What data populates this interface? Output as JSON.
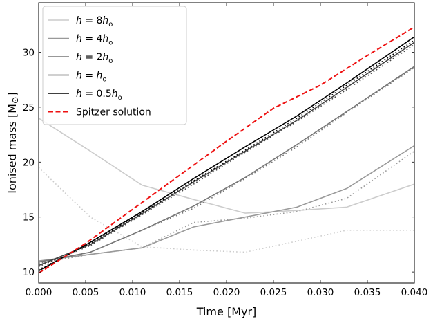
{
  "chart_data": {
    "type": "line",
    "title": "",
    "xlabel": "Time [Myr]",
    "ylabel": "Ionised mass [M⊙]",
    "xlim": [
      0.0,
      0.04
    ],
    "ylim": [
      9.0,
      34.5
    ],
    "xticks": [
      0.0,
      0.005,
      0.01,
      0.015,
      0.02,
      0.025,
      0.03,
      0.035,
      0.04
    ],
    "xtick_labels": [
      "0.000",
      "0.005",
      "0.010",
      "0.015",
      "0.020",
      "0.025",
      "0.030",
      "0.035",
      "0.040"
    ],
    "yticks": [
      10,
      15,
      20,
      25,
      30
    ],
    "ytick_labels": [
      "10",
      "15",
      "20",
      "25",
      "30"
    ],
    "grid": false,
    "legend_position": "top-left",
    "series": [
      {
        "name": "h = 8hₒ",
        "legend": {
          "var": "h",
          "eq": " = 8",
          "h": "h",
          "sub": "o"
        },
        "color": "#cccccc",
        "style": "solid",
        "x": [
          0.0,
          0.0055,
          0.011,
          0.0165,
          0.022,
          0.0275,
          0.0328,
          0.04
        ],
        "y": [
          24.0,
          21.0,
          17.9,
          16.6,
          15.35,
          15.6,
          15.9,
          18.0
        ]
      },
      {
        "name": "",
        "color": "#cccccc",
        "style": "dotted",
        "x": [
          0.0,
          0.0055,
          0.011,
          0.0165,
          0.022,
          0.0275,
          0.0328,
          0.04
        ],
        "y": [
          19.5,
          15.0,
          12.3,
          12.0,
          11.8,
          12.8,
          13.8,
          13.8
        ]
      },
      {
        "name": "h = 4hₒ",
        "legend": {
          "var": "h",
          "eq": " = 4",
          "h": "h",
          "sub": "o"
        },
        "color": "#999999",
        "style": "solid",
        "x": [
          0.0,
          0.0055,
          0.011,
          0.0165,
          0.022,
          0.0275,
          0.0328,
          0.04
        ],
        "y": [
          11.0,
          11.6,
          12.2,
          14.1,
          15.0,
          15.9,
          17.6,
          21.5
        ]
      },
      {
        "name": "",
        "color": "#999999",
        "style": "dotted",
        "x": [
          0.0,
          0.0055,
          0.011,
          0.0165,
          0.022,
          0.0275,
          0.0328,
          0.04
        ],
        "y": [
          10.8,
          11.6,
          12.2,
          14.5,
          14.9,
          15.5,
          16.7,
          21.0
        ]
      },
      {
        "name": "h = 2hₒ",
        "legend": {
          "var": "h",
          "eq": " = 2",
          "h": "h",
          "sub": "o"
        },
        "color": "#777777",
        "style": "solid",
        "x": [
          0.0,
          0.0055,
          0.011,
          0.0165,
          0.022,
          0.0275,
          0.0328,
          0.04
        ],
        "y": [
          10.9,
          11.8,
          13.8,
          16.0,
          18.6,
          21.6,
          24.6,
          28.7
        ]
      },
      {
        "name": "",
        "color": "#777777",
        "style": "dotted",
        "x": [
          0.0,
          0.0055,
          0.011,
          0.0165,
          0.022,
          0.0275,
          0.0328,
          0.04
        ],
        "y": [
          10.8,
          11.8,
          13.8,
          15.8,
          18.5,
          21.4,
          24.5,
          28.6
        ]
      },
      {
        "name": "h = hₒ",
        "legend": {
          "var": "h",
          "eq": " = ",
          "h": "h",
          "sub": "o"
        },
        "color": "#444444",
        "style": "solid",
        "x": [
          0.0,
          0.0055,
          0.011,
          0.0165,
          0.022,
          0.0275,
          0.0328,
          0.04
        ],
        "y": [
          10.6,
          12.5,
          15.3,
          18.2,
          21.0,
          23.8,
          26.8,
          30.9
        ]
      },
      {
        "name": "",
        "color": "#444444",
        "style": "dotted",
        "x": [
          0.0,
          0.0055,
          0.011,
          0.0165,
          0.022,
          0.0275,
          0.0328,
          0.04
        ],
        "y": [
          10.5,
          12.4,
          15.2,
          18.0,
          20.9,
          23.7,
          26.6,
          30.7
        ]
      },
      {
        "name": "h = 0.5hₒ",
        "legend": {
          "var": "h",
          "eq": " = 0.5",
          "h": "h",
          "sub": "o"
        },
        "color": "#000000",
        "style": "solid",
        "x": [
          0.0,
          0.0055,
          0.011,
          0.0165,
          0.022,
          0.0275,
          0.0328,
          0.04
        ],
        "y": [
          10.1,
          12.7,
          15.5,
          18.5,
          21.4,
          24.2,
          27.2,
          31.4
        ]
      },
      {
        "name": "",
        "color": "#000000",
        "style": "dotted",
        "x": [
          0.0,
          0.0055,
          0.011,
          0.0165,
          0.022,
          0.0275,
          0.0328,
          0.04
        ],
        "y": [
          10.2,
          12.6,
          15.4,
          18.3,
          21.1,
          24.0,
          27.0,
          31.1
        ]
      },
      {
        "name": "Spitzer solution",
        "legend": {
          "text": "Spitzer solution"
        },
        "color": "#ee1111",
        "style": "dashed",
        "x": [
          0.0,
          0.005,
          0.01,
          0.015,
          0.02,
          0.025,
          0.03,
          0.035,
          0.04
        ],
        "y": [
          9.9,
          12.6,
          15.7,
          18.8,
          21.9,
          24.9,
          27.0,
          29.7,
          32.3
        ]
      }
    ]
  }
}
